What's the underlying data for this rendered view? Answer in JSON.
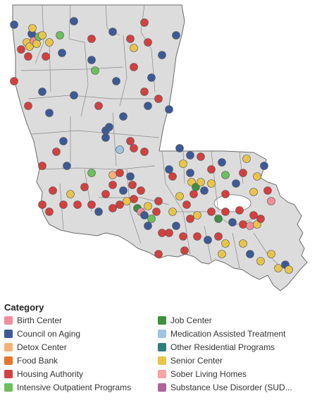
{
  "legend": {
    "title": "Category",
    "items": [
      {
        "label": "Birth Center",
        "color": "#f28e9c"
      },
      {
        "label": "Job Center",
        "color": "#3e8f3e"
      },
      {
        "label": "Council on Aging",
        "color": "#3d5a96"
      },
      {
        "label": "Medication Assisted Treatment",
        "color": "#a0c4e0"
      },
      {
        "label": "Detox Center",
        "color": "#f7b07a"
      },
      {
        "label": "Other Residential Programs",
        "color": "#2f7f7a"
      },
      {
        "label": "Food Bank",
        "color": "#e8742a"
      },
      {
        "label": "Senior Center",
        "color": "#e8c54a"
      },
      {
        "label": "Housing Authority",
        "color": "#d2403f"
      },
      {
        "label": "Sober Living Homes",
        "color": "#f5a3a3"
      },
      {
        "label": "Intensive Outpatient Programs",
        "color": "#6dbf5e"
      },
      {
        "label": "Substance Use Disorder (SUD..."
      }
    ]
  },
  "map": {
    "land_color": "#dcdcdc",
    "border_color": "#6b6b6b",
    "point_stroke": "#555555"
  }
}
